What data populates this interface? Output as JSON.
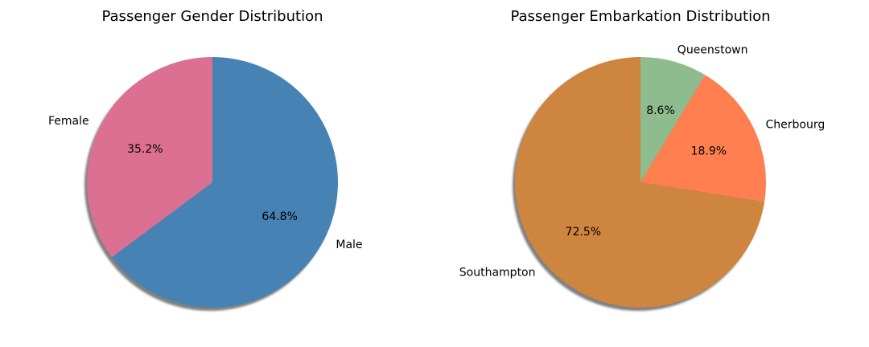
{
  "chart_data": [
    {
      "type": "pie",
      "title": "Passenger Gender Distribution",
      "slices": [
        {
          "label": "Male",
          "value": 64.8,
          "pct_label": "64.8%",
          "color": "#4682b4"
        },
        {
          "label": "Female",
          "value": 35.2,
          "pct_label": "35.2%",
          "color": "#db7093"
        }
      ],
      "start_angle_deg": 90,
      "direction": "clockwise",
      "shadow": true
    },
    {
      "type": "pie",
      "title": "Passenger Embarkation Distribution",
      "slices": [
        {
          "label": "Queenstown",
          "value": 8.6,
          "pct_label": "8.6%",
          "color": "#8fbc8f"
        },
        {
          "label": "Cherbourg",
          "value": 18.9,
          "pct_label": "18.9%",
          "color": "#ff7f50"
        },
        {
          "label": "Southampton",
          "value": 72.5,
          "pct_label": "72.5%",
          "color": "#cd853f"
        }
      ],
      "start_angle_deg": 90,
      "direction": "clockwise",
      "shadow": true
    }
  ]
}
